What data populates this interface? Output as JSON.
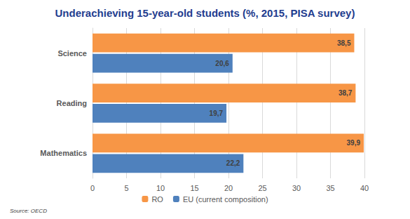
{
  "chart_data": {
    "type": "bar",
    "orientation": "horizontal",
    "title": "Underachieving 15-year-old students (%, 2015, PISA survey)",
    "categories": [
      "Science",
      "Reading",
      "Mathematics"
    ],
    "series": [
      {
        "name": "RO",
        "color": "#f79646",
        "values": [
          38.5,
          38.7,
          39.9
        ],
        "value_labels": [
          "38,5",
          "38,7",
          "39,9"
        ]
      },
      {
        "name": "EU (current composition)",
        "color": "#4f81bd",
        "values": [
          20.6,
          19.7,
          22.2
        ],
        "value_labels": [
          "20,6",
          "19,7",
          "22,2"
        ]
      }
    ],
    "xlim": [
      0,
      40
    ],
    "xticks": [
      0,
      5,
      10,
      15,
      20,
      25,
      30,
      35,
      40
    ],
    "grid": true,
    "legend": "bottom",
    "data_labels": true,
    "annotations": [
      "Source: OECD"
    ]
  }
}
